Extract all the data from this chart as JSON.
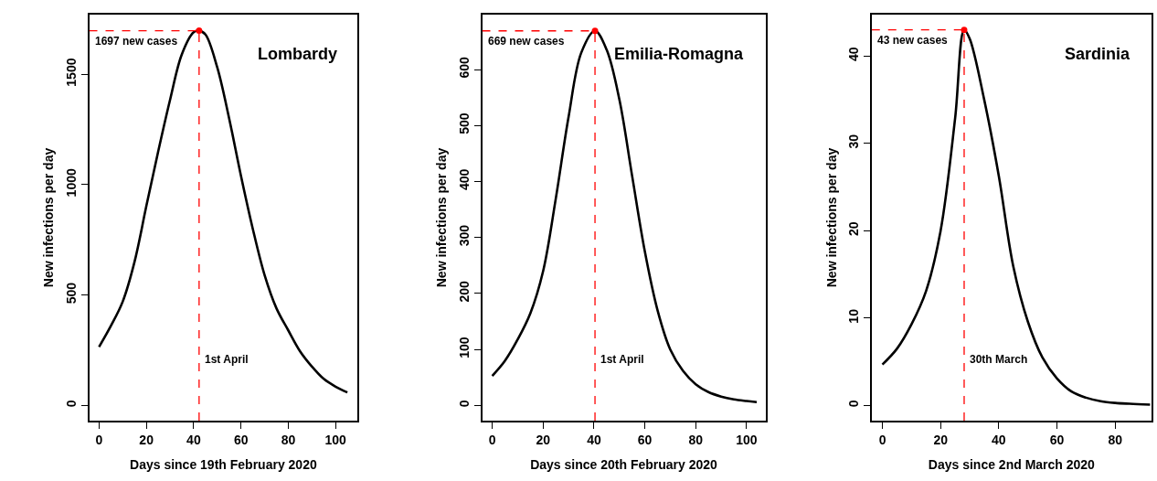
{
  "chart_data": [
    {
      "type": "line",
      "title": "Lombardy",
      "xlabel": "Days since 19th February 2020",
      "ylabel": "New infections per day",
      "xlim": [
        -4.2,
        109.3
      ],
      "ylim": [
        -69,
        1770
      ],
      "xticks": [
        0,
        20,
        40,
        60,
        80,
        100
      ],
      "yticks": [
        0,
        500,
        1000,
        1500
      ],
      "series": [
        {
          "color": "#000000",
          "marker": "none",
          "x": [
            0,
            5,
            10,
            15,
            20,
            25,
            30,
            35,
            40,
            42.3,
            45,
            50,
            55,
            60,
            65,
            70,
            75,
            80,
            85,
            90,
            95,
            100,
            105
          ],
          "values": [
            265,
            360,
            470,
            650,
            903,
            1150,
            1383,
            1590,
            1690,
            1697,
            1680,
            1530,
            1300,
            1040,
            800,
            590,
            440,
            340,
            245,
            176,
            120,
            85,
            59
          ]
        },
        {
          "type": "scatter",
          "color": "#ff0000",
          "marker": "circle",
          "x": [
            42.3
          ],
          "values": [
            1697
          ]
        }
      ],
      "ref_lines": [
        {
          "axis": "x",
          "value": 42.3,
          "label": "1st April",
          "color": "#ff0000",
          "line_style": "dashed"
        },
        {
          "axis": "y",
          "value": 1697,
          "label": "1697 new cases",
          "color": "#ff0000",
          "line_style": "dashed"
        }
      ]
    },
    {
      "type": "line",
      "title": "Emilia-Romagna",
      "xlabel": "Days since 20th February 2020",
      "ylabel": "New infections per day",
      "xlim": [
        -4.0,
        107.4
      ],
      "ylim": [
        -27,
        698
      ],
      "xticks": [
        0,
        20,
        40,
        60,
        80,
        100
      ],
      "yticks": [
        0,
        100,
        200,
        300,
        400,
        500,
        600
      ],
      "series": [
        {
          "color": "#000000",
          "marker": "none",
          "x": [
            0,
            5,
            10,
            15,
            20,
            25,
            30,
            35,
            40.4,
            45,
            50,
            55,
            60,
            65,
            70,
            75,
            80,
            85,
            90,
            95,
            100,
            104
          ],
          "values": [
            53,
            80,
            118,
            165,
            240,
            370,
            515,
            630,
            669,
            635,
            546,
            410,
            275,
            170,
            100,
            62,
            38,
            24,
            16,
            11,
            8,
            6
          ]
        },
        {
          "type": "scatter",
          "color": "#ff0000",
          "marker": "circle",
          "x": [
            40.4
          ],
          "values": [
            669
          ]
        }
      ],
      "ref_lines": [
        {
          "axis": "x",
          "value": 40.4,
          "label": "1st April",
          "color": "#ff0000",
          "line_style": "dashed"
        },
        {
          "axis": "y",
          "value": 669,
          "label": "669 new cases",
          "color": "#ff0000",
          "line_style": "dashed"
        }
      ]
    },
    {
      "type": "line",
      "title": "Sardinia",
      "xlabel": "Days since 2nd March 2020",
      "ylabel": "New infections per day",
      "xlim": [
        -3.7,
        92.5
      ],
      "ylim": [
        -1.73,
        44.75
      ],
      "xticks": [
        0,
        20,
        40,
        60,
        80
      ],
      "yticks": [
        0,
        10,
        20,
        30,
        40
      ],
      "series": [
        {
          "color": "#000000",
          "marker": "none",
          "x": [
            0,
            5,
            10,
            15,
            20,
            25,
            28.1,
            30,
            35,
            40,
            45,
            50,
            55,
            60,
            65,
            70,
            75,
            80,
            85,
            92
          ],
          "values": [
            4.7,
            6.5,
            9.3,
            13.1,
            20,
            32.9,
            43,
            42,
            35,
            26.3,
            15.9,
            9.6,
            5.5,
            3.1,
            1.6,
            0.9,
            0.5,
            0.3,
            0.2,
            0.1
          ]
        },
        {
          "type": "scatter",
          "color": "#ff0000",
          "marker": "circle",
          "x": [
            28.1
          ],
          "values": [
            43
          ]
        }
      ],
      "ref_lines": [
        {
          "axis": "x",
          "value": 28.1,
          "label": "30th March",
          "color": "#ff0000",
          "line_style": "dashed"
        },
        {
          "axis": "y",
          "value": 43,
          "label": "43 new cases",
          "color": "#ff0000",
          "line_style": "dashed"
        }
      ]
    }
  ]
}
